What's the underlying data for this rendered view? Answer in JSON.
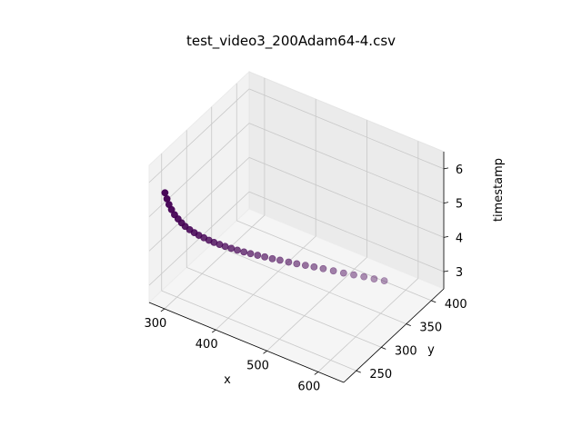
{
  "chart_data": {
    "type": "scatter3d",
    "title": "test_video3_200Adam64-4.csv",
    "xlabel": "x",
    "ylabel": "y",
    "zlabel": "timestamp",
    "x_ticks": [
      "300",
      "400",
      "500",
      "600"
    ],
    "y_ticks": [
      "250",
      "300",
      "350",
      "400"
    ],
    "z_ticks": [
      "3",
      "4",
      "5",
      "6"
    ],
    "xlim": [
      270,
      650
    ],
    "ylim": [
      225,
      425
    ],
    "zlim": [
      2.5,
      6.5
    ],
    "grid": true,
    "marker_color": "#440154",
    "points": [
      {
        "x": 570,
        "y": 388,
        "z": 2.75
      },
      {
        "x": 555,
        "y": 383,
        "z": 2.78
      },
      {
        "x": 540,
        "y": 378,
        "z": 2.82
      },
      {
        "x": 525,
        "y": 373,
        "z": 2.85
      },
      {
        "x": 510,
        "y": 368,
        "z": 2.88
      },
      {
        "x": 495,
        "y": 363,
        "z": 2.92
      },
      {
        "x": 480,
        "y": 358,
        "z": 2.96
      },
      {
        "x": 467,
        "y": 353,
        "z": 3.0
      },
      {
        "x": 455,
        "y": 348,
        "z": 3.04
      },
      {
        "x": 443,
        "y": 343,
        "z": 3.08
      },
      {
        "x": 432,
        "y": 338,
        "z": 3.13
      },
      {
        "x": 420,
        "y": 333,
        "z": 3.18
      },
      {
        "x": 410,
        "y": 328,
        "z": 3.23
      },
      {
        "x": 400,
        "y": 323,
        "z": 3.29
      },
      {
        "x": 391,
        "y": 318,
        "z": 3.35
      },
      {
        "x": 382,
        "y": 313,
        "z": 3.41
      },
      {
        "x": 374,
        "y": 308,
        "z": 3.48
      },
      {
        "x": 366,
        "y": 303,
        "z": 3.55
      },
      {
        "x": 359,
        "y": 298,
        "z": 3.63
      },
      {
        "x": 352,
        "y": 293,
        "z": 3.71
      },
      {
        "x": 346,
        "y": 288,
        "z": 3.8
      },
      {
        "x": 340,
        "y": 283,
        "z": 3.89
      },
      {
        "x": 335,
        "y": 278,
        "z": 3.99
      },
      {
        "x": 330,
        "y": 273,
        "z": 4.1
      },
      {
        "x": 325,
        "y": 268,
        "z": 4.21
      },
      {
        "x": 321,
        "y": 263,
        "z": 4.33
      },
      {
        "x": 317,
        "y": 258,
        "z": 4.46
      },
      {
        "x": 313,
        "y": 253,
        "z": 4.6
      },
      {
        "x": 310,
        "y": 249,
        "z": 4.74
      },
      {
        "x": 307,
        "y": 245,
        "z": 4.89
      },
      {
        "x": 304,
        "y": 241,
        "z": 5.05
      },
      {
        "x": 301,
        "y": 238,
        "z": 5.22
      },
      {
        "x": 299,
        "y": 235,
        "z": 5.4
      },
      {
        "x": 297,
        "y": 233,
        "z": 5.58
      },
      {
        "x": 295,
        "y": 231,
        "z": 5.77
      }
    ]
  }
}
